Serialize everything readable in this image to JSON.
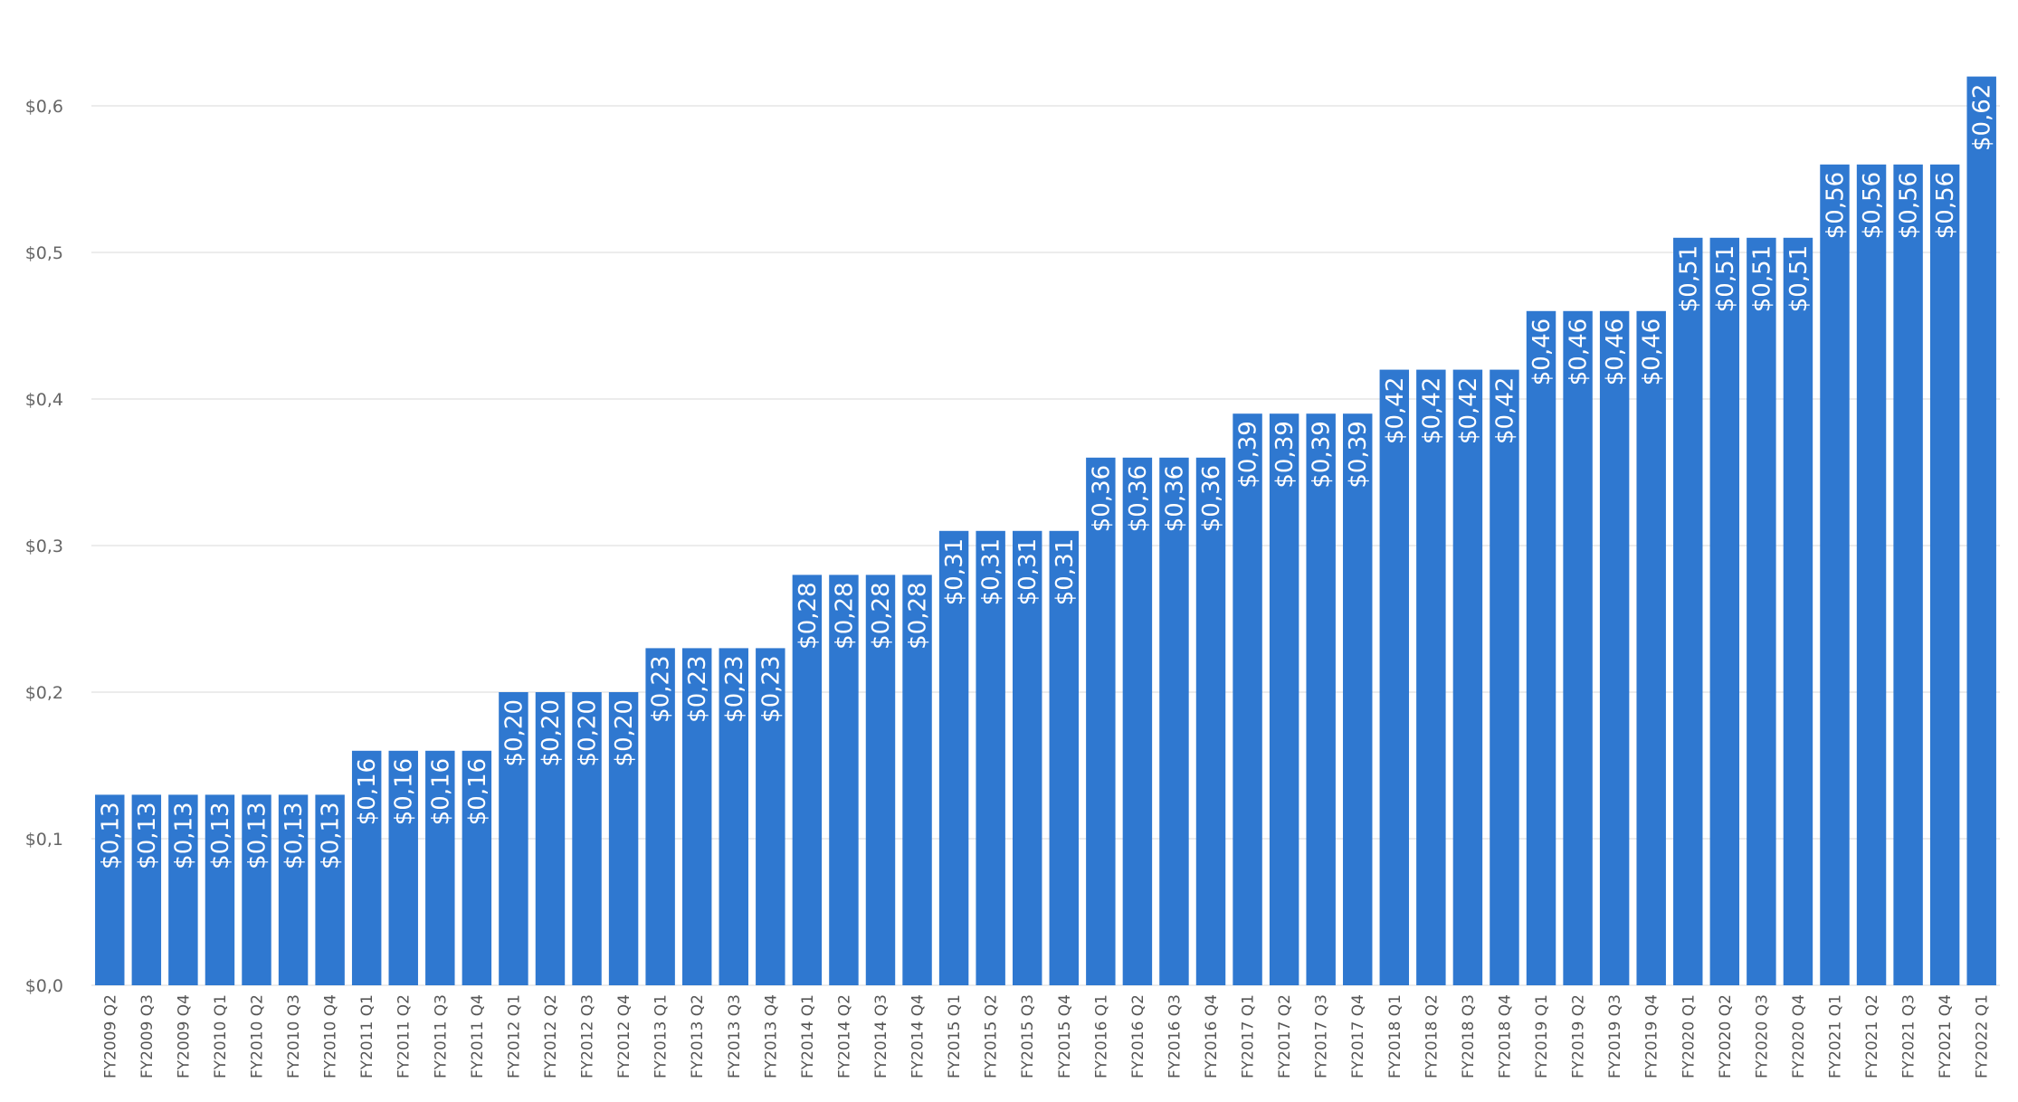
{
  "colors": {
    "bar": "#2f78d0",
    "grid": "#e6e6e6",
    "axis_text": "#666666",
    "data_label": "#ffffff"
  },
  "chart_data": {
    "type": "bar",
    "title": "",
    "xlabel": "",
    "ylabel": "",
    "ylim": [
      0,
      0.62
    ],
    "grid": true,
    "y_ticks": [
      {
        "value": 0.0,
        "label": "$0,0"
      },
      {
        "value": 0.1,
        "label": "$0,1"
      },
      {
        "value": 0.2,
        "label": "$0,2"
      },
      {
        "value": 0.3,
        "label": "$0,3"
      },
      {
        "value": 0.4,
        "label": "$0,4"
      },
      {
        "value": 0.5,
        "label": "$0,5"
      },
      {
        "value": 0.6,
        "label": "$0,6"
      }
    ],
    "categories": [
      "FY2009 Q2",
      "FY2009 Q3",
      "FY2009 Q4",
      "FY2010 Q1",
      "FY2010 Q2",
      "FY2010 Q3",
      "FY2010 Q4",
      "FY2011 Q1",
      "FY2011 Q2",
      "FY2011 Q3",
      "FY2011 Q4",
      "FY2012 Q1",
      "FY2012 Q2",
      "FY2012 Q3",
      "FY2012 Q4",
      "FY2013 Q1",
      "FY2013 Q2",
      "FY2013 Q3",
      "FY2013 Q4",
      "FY2014 Q1",
      "FY2014 Q2",
      "FY2014 Q3",
      "FY2014 Q4",
      "FY2015 Q1",
      "FY2015 Q2",
      "FY2015 Q3",
      "FY2015 Q4",
      "FY2016 Q1",
      "FY2016 Q2",
      "FY2016 Q3",
      "FY2016 Q4",
      "FY2017 Q1",
      "FY2017 Q2",
      "FY2017 Q3",
      "FY2017 Q4",
      "FY2018 Q1",
      "FY2018 Q2",
      "FY2018 Q3",
      "FY2018 Q4",
      "FY2019 Q1",
      "FY2019 Q2",
      "FY2019 Q3",
      "FY2019 Q4",
      "FY2020 Q1",
      "FY2020 Q2",
      "FY2020 Q3",
      "FY2020 Q4",
      "FY2021 Q1",
      "FY2021 Q2",
      "FY2021 Q3",
      "FY2021 Q4",
      "FY2022 Q1"
    ],
    "values": [
      0.13,
      0.13,
      0.13,
      0.13,
      0.13,
      0.13,
      0.13,
      0.16,
      0.16,
      0.16,
      0.16,
      0.2,
      0.2,
      0.2,
      0.2,
      0.23,
      0.23,
      0.23,
      0.23,
      0.28,
      0.28,
      0.28,
      0.28,
      0.31,
      0.31,
      0.31,
      0.31,
      0.36,
      0.36,
      0.36,
      0.36,
      0.39,
      0.39,
      0.39,
      0.39,
      0.42,
      0.42,
      0.42,
      0.42,
      0.46,
      0.46,
      0.46,
      0.46,
      0.51,
      0.51,
      0.51,
      0.51,
      0.56,
      0.56,
      0.56,
      0.56,
      0.62
    ],
    "data_labels": [
      "$0,13",
      "$0,13",
      "$0,13",
      "$0,13",
      "$0,13",
      "$0,13",
      "$0,13",
      "$0,16",
      "$0,16",
      "$0,16",
      "$0,16",
      "$0,20",
      "$0,20",
      "$0,20",
      "$0,20",
      "$0,23",
      "$0,23",
      "$0,23",
      "$0,23",
      "$0,28",
      "$0,28",
      "$0,28",
      "$0,28",
      "$0,31",
      "$0,31",
      "$0,31",
      "$0,31",
      "$0,36",
      "$0,36",
      "$0,36",
      "$0,36",
      "$0,39",
      "$0,39",
      "$0,39",
      "$0,39",
      "$0,42",
      "$0,42",
      "$0,42",
      "$0,42",
      "$0,46",
      "$0,46",
      "$0,46",
      "$0,46",
      "$0,51",
      "$0,51",
      "$0,51",
      "$0,51",
      "$0,56",
      "$0,56",
      "$0,56",
      "$0,56",
      "$0,62"
    ]
  }
}
